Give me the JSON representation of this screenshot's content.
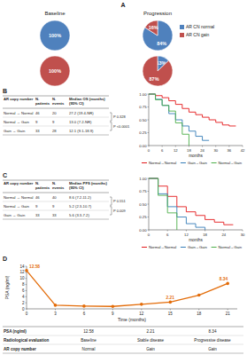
{
  "chart_data": [
    {
      "type": "pie",
      "title": "A",
      "column_titles": [
        "Baseline",
        "Progression"
      ],
      "categories": [
        "AR CN normal",
        "AR CN gain"
      ],
      "colors": [
        "#4f81bd",
        "#c0504d"
      ],
      "legend": "right",
      "pies": [
        {
          "values": [
            100,
            0
          ],
          "value_labels": [
            "100%",
            null
          ]
        },
        {
          "values": [
            84,
            16
          ],
          "value_labels": [
            "84%",
            "16%"
          ]
        },
        {
          "values": [
            0,
            100
          ],
          "value_labels": [
            null,
            "100%"
          ]
        },
        {
          "values": [
            13,
            87
          ],
          "value_labels": [
            "13%",
            "87%"
          ]
        }
      ]
    },
    {
      "type": "line",
      "line_style": "step",
      "title": "B",
      "x_label": "months",
      "xlim": [
        0,
        42
      ],
      "xticks": [
        0,
        6,
        12,
        18,
        24,
        30,
        36,
        42
      ],
      "ylim": [
        0,
        1
      ],
      "yticks": [
        {
          "value": 0,
          "label": "0.00"
        },
        {
          "value": 0.25,
          "label": "0.25"
        },
        {
          "value": 0.5,
          "label": "0.50"
        },
        {
          "value": 0.75,
          "label": "0.75"
        },
        {
          "value": 1,
          "label": "1.00"
        }
      ],
      "legend": "bottom",
      "series": [
        {
          "name": "Normal→Normal",
          "color": "#e41a1c",
          "x": [
            0,
            3,
            6,
            9,
            12,
            15,
            18,
            21,
            24,
            27,
            30,
            33,
            36,
            39
          ],
          "values": [
            1,
            0.97,
            0.93,
            0.87,
            0.8,
            0.72,
            0.65,
            0.6,
            0.55,
            0.5,
            0.45,
            0.4,
            0.38,
            0.38
          ]
        },
        {
          "name": "Gain→Gain",
          "color": "#377eb8",
          "x": [
            0,
            3,
            6,
            9,
            12,
            15,
            18,
            21,
            24,
            27
          ],
          "values": [
            1,
            0.9,
            0.78,
            0.62,
            0.5,
            0.38,
            0.28,
            0.18,
            0.1,
            0.1
          ]
        },
        {
          "name": "Normal→Gain",
          "color": "#4daf4a",
          "x": [
            0,
            3,
            6,
            9,
            12,
            15,
            18
          ],
          "values": [
            1,
            0.89,
            0.78,
            0.67,
            0.44,
            0.22,
            0
          ]
        }
      ]
    },
    {
      "type": "line",
      "line_style": "step",
      "title": "C",
      "x_label": "months",
      "xlim": [
        0,
        30
      ],
      "xticks": [
        0,
        6,
        12,
        18,
        24,
        30
      ],
      "ylim": [
        0,
        1
      ],
      "yticks": [
        {
          "value": 0,
          "label": "0.00"
        },
        {
          "value": 0.25,
          "label": "0.25"
        },
        {
          "value": 0.5,
          "label": "0.50"
        },
        {
          "value": 0.75,
          "label": "0.75"
        },
        {
          "value": 1,
          "label": "1.00"
        }
      ],
      "legend": "bottom",
      "series": [
        {
          "name": "Normal→Normal",
          "color": "#e41a1c",
          "x": [
            0,
            3,
            6,
            9,
            12,
            15,
            18,
            21,
            24,
            27
          ],
          "values": [
            1,
            0.85,
            0.65,
            0.45,
            0.35,
            0.28,
            0.2,
            0.15,
            0.1,
            0.1
          ]
        },
        {
          "name": "Gain→Gain",
          "color": "#377eb8",
          "x": [
            0,
            3,
            6,
            9,
            12,
            15,
            18
          ],
          "values": [
            1,
            0.7,
            0.45,
            0.25,
            0.12,
            0.05,
            0
          ]
        },
        {
          "name": "Normal→Gain",
          "color": "#4daf4a",
          "x": [
            0,
            3,
            6,
            9
          ],
          "values": [
            1,
            0.67,
            0.33,
            0
          ]
        }
      ]
    },
    {
      "type": "line",
      "title": "D",
      "x_label": "Time (months)",
      "y_label": "PSA (ng/ml)",
      "xlim": [
        0,
        22
      ],
      "xticks": [
        0,
        3,
        6,
        9,
        12,
        15,
        18,
        21
      ],
      "ylim": [
        0,
        14
      ],
      "yticks": [
        0,
        2,
        4,
        6,
        8,
        10,
        12,
        14
      ],
      "series": [
        {
          "name": "PSA",
          "color": "#e36c09",
          "marker": "circle",
          "x": [
            0,
            3,
            6,
            9,
            12,
            15,
            18,
            21
          ],
          "values": [
            12.58,
            1.2,
            0.9,
            0.8,
            1.5,
            2.21,
            4.5,
            8.34
          ],
          "value_labels": [
            "12.58",
            null,
            null,
            null,
            null,
            "2.21",
            null,
            "8.34"
          ]
        }
      ]
    }
  ],
  "tables": [
    {
      "header": [
        "AR copy number",
        "N. patients",
        "N. events",
        "Median OS (months) (95% CI)"
      ],
      "rows": [
        [
          "Normal → Normal",
          "46",
          "20",
          "27.2 (19.4-NR)"
        ],
        [
          "Normal → Gain",
          "9",
          "9",
          "13.0 (7.2-NR)"
        ],
        [
          "Gain → Gain",
          "33",
          "28",
          "12.1 (9.1-18.9)"
        ]
      ],
      "p_values": [
        "P 0.328",
        "P <0.0001"
      ]
    },
    {
      "header": [
        "AR copy number",
        "N. patients",
        "N. events",
        "Median PFS (months) (95% CI)"
      ],
      "rows": [
        [
          "Normal → Normal",
          "46",
          "40",
          "8.6 (7.2-11.2)"
        ],
        [
          "Normal → Gain",
          "9",
          "9",
          "5.2 (2.3-10.7)"
        ],
        [
          "Gain → Gain",
          "33",
          "33",
          "5.6 (3.3-7.2)"
        ]
      ],
      "p_values": [
        "P 0.551",
        "P 0.009"
      ]
    },
    {
      "rows": [
        [
          "PSA (ng/ml)",
          "12.58",
          "2.21",
          "8.34"
        ],
        [
          "Radiological evaluation",
          "Baseline",
          "Stable disease",
          "Progressive disease"
        ],
        [
          "AR copy number",
          "Normal",
          "Gain",
          "Gain"
        ]
      ]
    }
  ]
}
